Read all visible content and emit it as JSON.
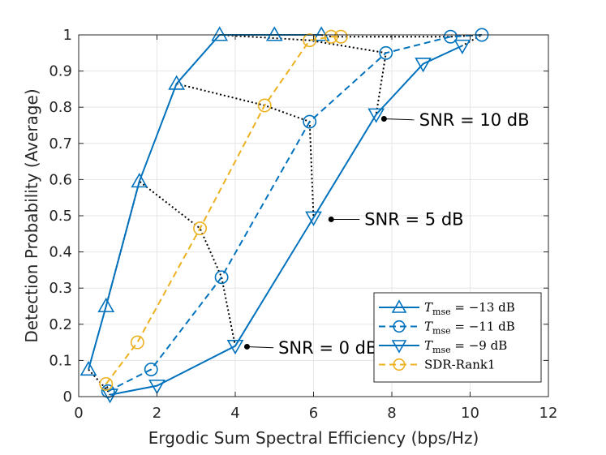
{
  "chart_data": {
    "type": "line",
    "xlabel": "Ergodic Sum Spectral Efficiency (bps/Hz)",
    "ylabel": "Detection Probability (Average)",
    "xlim": [
      0,
      12
    ],
    "ylim": [
      0,
      1
    ],
    "xticks": [
      "0",
      "2",
      "4",
      "6",
      "8",
      "10",
      "12"
    ],
    "yticks": [
      "0",
      "0.1",
      "0.2",
      "0.3",
      "0.4",
      "0.5",
      "0.6",
      "0.7",
      "0.8",
      "0.9",
      "1"
    ],
    "grid": true,
    "legend_position": "bottom-right",
    "colors": {
      "blue": "#0072BD",
      "orange": "#EDB120",
      "snr_line": "#000000",
      "grid": "#e6e6e6"
    },
    "series": [
      {
        "name": "T_mse = −13 dB",
        "legend_main": "T",
        "legend_sub": "mse",
        "legend_rest": " = −13 dB",
        "marker": "triangle-up",
        "dash": "solid",
        "color": "#0072BD",
        "x": [
          0.25,
          0.7,
          1.55,
          2.5,
          3.6,
          5.0,
          6.2
        ],
        "y": [
          0.075,
          0.25,
          0.595,
          0.865,
          1.0,
          1.0,
          1.0
        ]
      },
      {
        "name": "T_mse = −11 dB",
        "legend_main": "T",
        "legend_sub": "mse",
        "legend_rest": " = −11 dB",
        "marker": "circle",
        "dash": "dashed",
        "color": "#0072BD",
        "x": [
          0.75,
          1.85,
          3.65,
          5.9,
          7.85,
          9.5,
          10.3
        ],
        "y": [
          0.015,
          0.075,
          0.33,
          0.76,
          0.95,
          0.995,
          1.0
        ]
      },
      {
        "name": "T_mse = −9 dB",
        "legend_main": "T",
        "legend_sub": "mse",
        "legend_rest": " = −9 dB",
        "marker": "triangle-down",
        "dash": "solid",
        "color": "#0072BD",
        "x": [
          0.8,
          2.0,
          4.0,
          6.0,
          7.6,
          8.8,
          9.8
        ],
        "y": [
          0.005,
          0.03,
          0.14,
          0.495,
          0.78,
          0.92,
          0.97
        ]
      },
      {
        "name": "SDR-Rank1",
        "legend_main": "SDR-Rank1",
        "legend_sub": "",
        "legend_rest": "",
        "marker": "circle",
        "dash": "dashed",
        "color": "#EDB120",
        "x": [
          0.7,
          1.5,
          3.1,
          4.75,
          5.9,
          6.45,
          6.7
        ],
        "y": [
          0.035,
          0.15,
          0.465,
          0.805,
          0.985,
          0.995,
          0.995
        ]
      }
    ],
    "snr_lines": [
      {
        "x": [
          0.25,
          0.75,
          0.8,
          0.7
        ],
        "y": [
          0.075,
          0.015,
          0.005,
          0.035
        ]
      },
      {
        "x": [
          0.7,
          1.55,
          3.1,
          3.65,
          4.0
        ],
        "y": [
          0.25,
          0.595,
          0.465,
          0.33,
          0.14
        ]
      },
      {
        "x": [
          2.5,
          4.75,
          5.9,
          6.0
        ],
        "y": [
          0.865,
          0.805,
          0.76,
          0.495
        ]
      },
      {
        "x": [
          3.6,
          5.9,
          7.85,
          7.6
        ],
        "y": [
          1.0,
          0.985,
          0.95,
          0.78
        ]
      },
      {
        "x": [
          6.2,
          6.45,
          9.5,
          10.3,
          9.8
        ],
        "y": [
          1.0,
          0.995,
          0.995,
          1.0,
          0.97
        ]
      }
    ],
    "annotations": [
      {
        "text": "SNR = 0 dB",
        "point": [
          4.3,
          0.138
        ],
        "text_x": 5.1,
        "text_y": 0.135
      },
      {
        "text": "SNR = 5 dB",
        "point": [
          6.45,
          0.49
        ],
        "text_x": 7.3,
        "text_y": 0.49
      },
      {
        "text": "SNR = 10 dB",
        "point": [
          7.8,
          0.768
        ],
        "text_x": 8.7,
        "text_y": 0.765
      }
    ]
  }
}
